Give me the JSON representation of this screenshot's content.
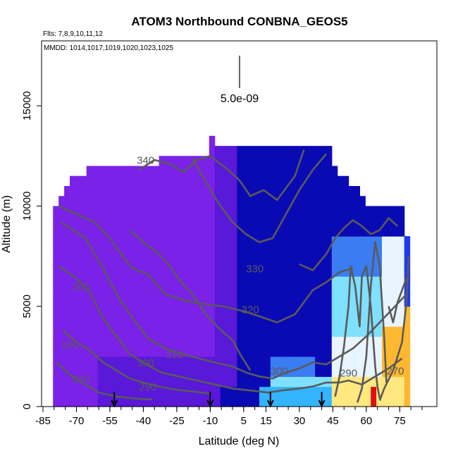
{
  "chart_data": {
    "type": "heatmap",
    "title": "ATOM3 Northbound CONBNA_GEOS5",
    "flights_label": "Flts: 7,8,9,10,11,12",
    "mmdd_label": "MMDD: 1014,1017,1019,1020,1023,1025",
    "xlabel": "Latitude (deg N)",
    "ylabel": "Altitude (m)",
    "xlim": [
      -85,
      85
    ],
    "ylim": [
      0,
      17500
    ],
    "x_ticks": [
      -85,
      -70,
      -55,
      -40,
      -25,
      -10,
      5,
      15,
      30,
      45,
      60,
      75
    ],
    "y_ticks": [
      0,
      5000,
      10000,
      15000
    ],
    "scale_bar_label": "5.0e-09",
    "colors": {
      "purple": "#7b22e8",
      "dark_purple": "#5a18d8",
      "navy": "#0a0ab4",
      "blue": "#1f3bf0",
      "mid_blue": "#3a7cf2",
      "light_blue": "#33b4ff",
      "cyan": "#7fe0ff",
      "pale": "#e8f4ff",
      "yellow": "#ffe880",
      "orange": "#ffb830",
      "red": "#e01010",
      "contour": "#5a5a5a"
    },
    "contour_labels": [
      {
        "text": "340",
        "x": -39,
        "y": 12100
      },
      {
        "text": "330",
        "x": 10,
        "y": 6700
      },
      {
        "text": "320",
        "x": 8,
        "y": 4650
      },
      {
        "text": "310",
        "x": -26,
        "y": 2400
      },
      {
        "text": "300",
        "x": -39,
        "y": 2000
      },
      {
        "text": "300",
        "x": 21,
        "y": 1600
      },
      {
        "text": "290",
        "x": -73,
        "y": 2900
      },
      {
        "text": "290",
        "x": -38,
        "y": 800
      },
      {
        "text": "290",
        "x": 52,
        "y": 1500
      },
      {
        "text": "270",
        "x": -68,
        "y": 1200
      },
      {
        "text": "270",
        "x": 73,
        "y": 1600
      },
      {
        "text": "300",
        "x": -68,
        "y": 5800
      }
    ],
    "arrows_at_latitude": [
      -53,
      -10,
      17,
      40
    ]
  }
}
